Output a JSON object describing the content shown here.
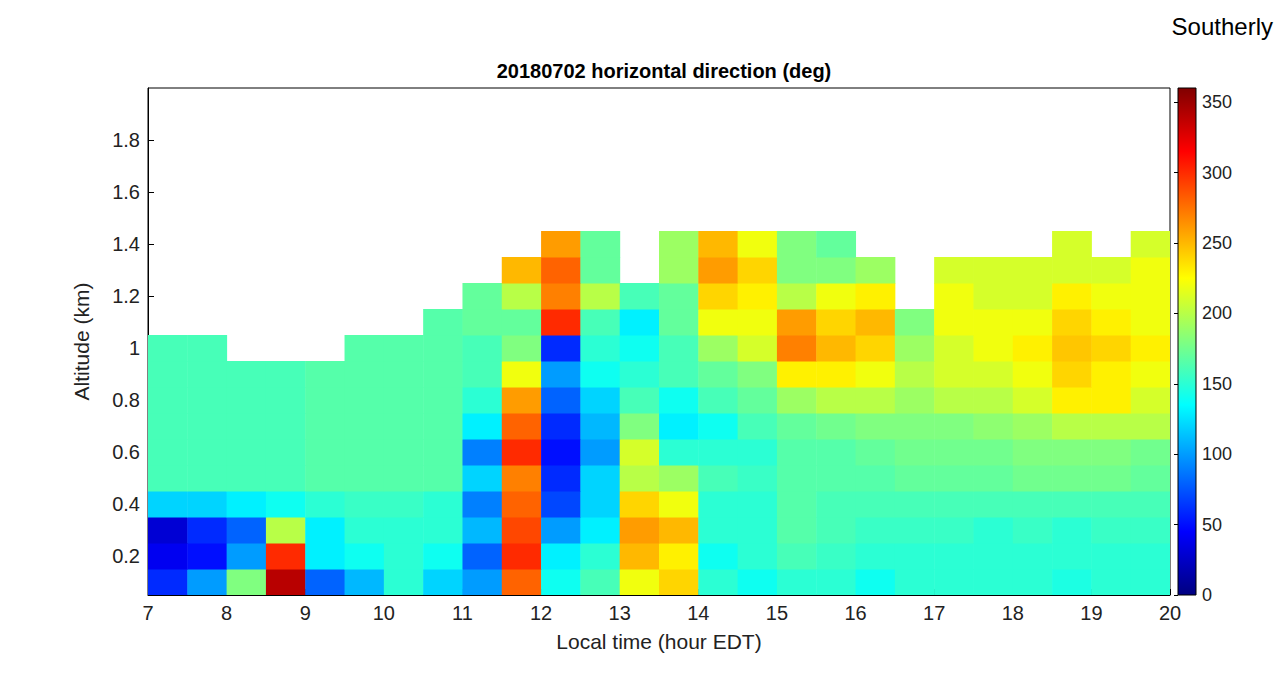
{
  "chart_data": {
    "type": "heatmap",
    "title": "20180702 horizontal direction (deg)",
    "annotation": "Southerly",
    "x_label": "Local time (hour EDT)",
    "y_label": "Altitude (km)",
    "xlim": [
      7,
      20
    ],
    "xticks": [
      7,
      8,
      9,
      10,
      11,
      12,
      13,
      14,
      15,
      16,
      17,
      18,
      19,
      20
    ],
    "ylim": [
      0.05,
      2.0
    ],
    "yticks": [
      0.2,
      0.4,
      0.6,
      0.8,
      1,
      1.2,
      1.4,
      1.6,
      1.8
    ],
    "x": [
      7.25,
      7.75,
      8.25,
      8.75,
      9.25,
      9.75,
      10.25,
      10.75,
      11.25,
      11.75,
      12.25,
      12.75,
      13.25,
      13.75,
      14.25,
      14.75,
      15.25,
      15.75,
      16.25,
      16.75,
      17.25,
      17.75,
      18.25,
      18.75,
      19.25,
      19.75
    ],
    "y": [
      0.1,
      0.2,
      0.3,
      0.4,
      0.5,
      0.6,
      0.7,
      0.8,
      0.9,
      1.0,
      1.1,
      1.2,
      1.3,
      1.4
    ],
    "cells": [
      [
        60,
        100,
        180,
        340,
        80,
        110,
        150,
        120,
        100,
        280,
        140,
        160,
        220,
        240,
        150,
        140,
        150,
        150,
        140,
        150,
        150,
        150,
        150,
        145,
        150,
        150
      ],
      [
        40,
        50,
        100,
        300,
        130,
        140,
        150,
        140,
        80,
        300,
        130,
        150,
        250,
        230,
        140,
        150,
        160,
        155,
        150,
        150,
        150,
        150,
        150,
        150,
        150,
        150
      ],
      [
        30,
        60,
        80,
        200,
        130,
        150,
        150,
        150,
        110,
        290,
        100,
        130,
        260,
        250,
        150,
        150,
        165,
        160,
        155,
        155,
        155,
        150,
        155,
        150,
        155,
        155
      ],
      [
        120,
        120,
        130,
        140,
        150,
        155,
        155,
        150,
        90,
        280,
        70,
        120,
        240,
        220,
        150,
        150,
        165,
        160,
        160,
        160,
        160,
        160,
        160,
        160,
        160,
        160
      ],
      [
        160,
        160,
        160,
        160,
        165,
        165,
        165,
        165,
        120,
        270,
        60,
        120,
        200,
        190,
        160,
        155,
        165,
        165,
        165,
        170,
        170,
        170,
        175,
        175,
        175,
        170
      ],
      [
        160,
        160,
        160,
        160,
        165,
        165,
        165,
        165,
        90,
        300,
        50,
        100,
        210,
        150,
        150,
        150,
        165,
        165,
        170,
        175,
        175,
        175,
        180,
        180,
        180,
        175
      ],
      [
        160,
        160,
        160,
        160,
        165,
        165,
        165,
        165,
        130,
        280,
        60,
        110,
        180,
        130,
        140,
        160,
        170,
        175,
        180,
        180,
        180,
        185,
        190,
        200,
        200,
        200
      ],
      [
        160,
        160,
        160,
        160,
        165,
        165,
        165,
        165,
        150,
        260,
        80,
        120,
        160,
        140,
        160,
        170,
        190,
        200,
        200,
        190,
        200,
        200,
        210,
        230,
        230,
        210
      ],
      [
        160,
        160,
        160,
        160,
        165,
        165,
        165,
        165,
        160,
        220,
        100,
        140,
        150,
        160,
        170,
        180,
        230,
        230,
        220,
        200,
        210,
        210,
        220,
        240,
        230,
        220
      ],
      [
        160,
        160,
        null,
        null,
        null,
        165,
        165,
        165,
        160,
        180,
        60,
        150,
        140,
        160,
        190,
        210,
        270,
        250,
        240,
        190,
        210,
        220,
        230,
        245,
        240,
        230
      ],
      [
        null,
        null,
        null,
        null,
        null,
        null,
        null,
        165,
        170,
        170,
        300,
        160,
        130,
        170,
        220,
        220,
        260,
        240,
        250,
        180,
        220,
        220,
        220,
        240,
        230,
        220
      ],
      [
        null,
        null,
        null,
        null,
        null,
        null,
        null,
        null,
        170,
        200,
        270,
        200,
        160,
        170,
        240,
        230,
        200,
        220,
        230,
        null,
        220,
        210,
        210,
        230,
        220,
        220
      ],
      [
        null,
        null,
        null,
        null,
        null,
        null,
        null,
        null,
        null,
        250,
        280,
        170,
        null,
        190,
        260,
        240,
        180,
        180,
        190,
        null,
        210,
        210,
        210,
        210,
        210,
        220
      ],
      [
        null,
        null,
        null,
        null,
        null,
        null,
        null,
        null,
        null,
        null,
        260,
        170,
        null,
        190,
        250,
        220,
        180,
        170,
        null,
        null,
        null,
        null,
        null,
        210,
        null,
        210
      ]
    ],
    "colorbar_lim": [
      0,
      360
    ],
    "colorbar_ticks": [
      0,
      50,
      100,
      150,
      200,
      250,
      300,
      350
    ]
  }
}
